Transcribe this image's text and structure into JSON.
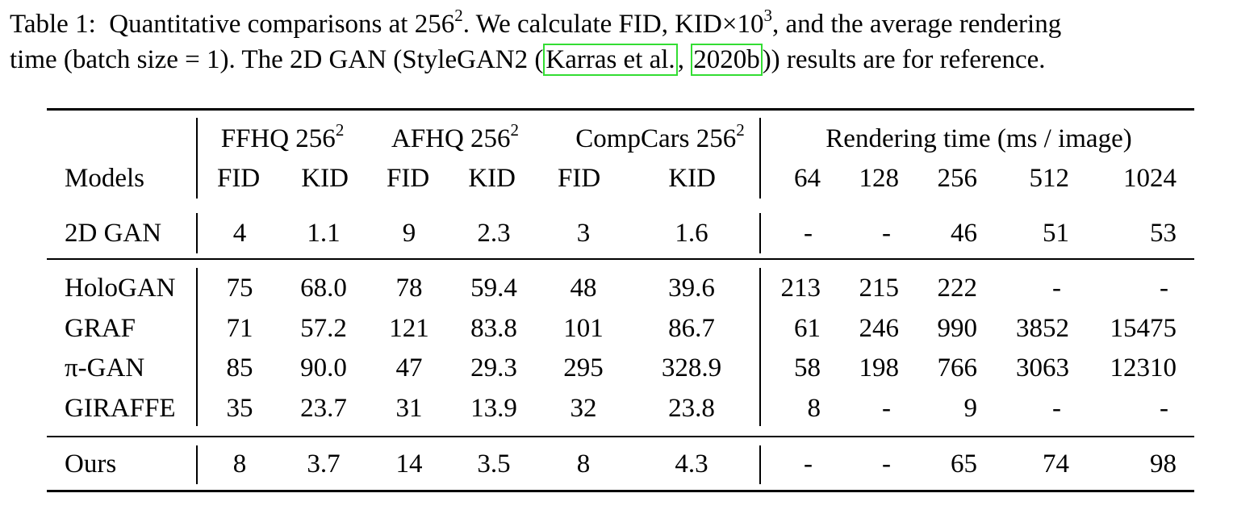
{
  "caption": {
    "label": "Table 1:",
    "line1_text": "Quantitative comparisons at 256",
    "line1_sup1": "2",
    "line1_mid": ". We calculate FID, KID×10",
    "line1_sup2": "3",
    "line1_end": ", and the average rendering",
    "line2_start": "time (batch size = 1). The 2D GAN (StyleGAN2 (",
    "cite_authors": "Karras et al.",
    "cite_sep": ", ",
    "cite_year": "2020b",
    "line2_end": ")) results are for reference."
  },
  "table": {
    "group_headers": {
      "ffhq": "FFHQ 256",
      "afhq": "AFHQ 256",
      "compcars": "CompCars 256",
      "sup": "2",
      "rendering": "Rendering time (ms / image)"
    },
    "columns": {
      "models": "Models",
      "fid": "FID",
      "kid": "KID",
      "res": [
        "64",
        "128",
        "256",
        "512",
        "1024"
      ]
    },
    "rows": [
      {
        "model": "2D GAN",
        "ffhq_fid": "4",
        "ffhq_kid": "1.1",
        "afhq_fid": "9",
        "afhq_kid": "2.3",
        "cc_fid": "3",
        "cc_kid": "1.6",
        "t64": "-",
        "t128": "-",
        "t256": "46",
        "t512": "51",
        "t1024": "53"
      },
      {
        "model": "HoloGAN",
        "ffhq_fid": "75",
        "ffhq_kid": "68.0",
        "afhq_fid": "78",
        "afhq_kid": "59.4",
        "cc_fid": "48",
        "cc_kid": "39.6",
        "t64": "213",
        "t128": "215",
        "t256": "222",
        "t512": "-",
        "t1024": "-"
      },
      {
        "model": "GRAF",
        "ffhq_fid": "71",
        "ffhq_kid": "57.2",
        "afhq_fid": "121",
        "afhq_kid": "83.8",
        "cc_fid": "101",
        "cc_kid": "86.7",
        "t64": "61",
        "t128": "246",
        "t256": "990",
        "t512": "3852",
        "t1024": "15475"
      },
      {
        "model": "π-GAN",
        "ffhq_fid": "85",
        "ffhq_kid": "90.0",
        "afhq_fid": "47",
        "afhq_kid": "29.3",
        "cc_fid": "295",
        "cc_kid": "328.9",
        "t64": "58",
        "t128": "198",
        "t256": "766",
        "t512": "3063",
        "t1024": "12310"
      },
      {
        "model": "GIRAFFE",
        "ffhq_fid": "35",
        "ffhq_kid": "23.7",
        "afhq_fid": "31",
        "afhq_kid": "13.9",
        "cc_fid": "32",
        "cc_kid": "23.8",
        "t64": "8",
        "t128": "-",
        "t256": "9",
        "t512": "-",
        "t1024": "-"
      },
      {
        "model": "Ours",
        "ffhq_fid": "8",
        "ffhq_kid": "3.7",
        "afhq_fid": "14",
        "afhq_kid": "3.5",
        "cc_fid": "8",
        "cc_kid": "4.3",
        "t64": "-",
        "t128": "-",
        "t256": "65",
        "t512": "74",
        "t1024": "98"
      }
    ]
  },
  "colors": {
    "citation_border": "#33dd33"
  }
}
